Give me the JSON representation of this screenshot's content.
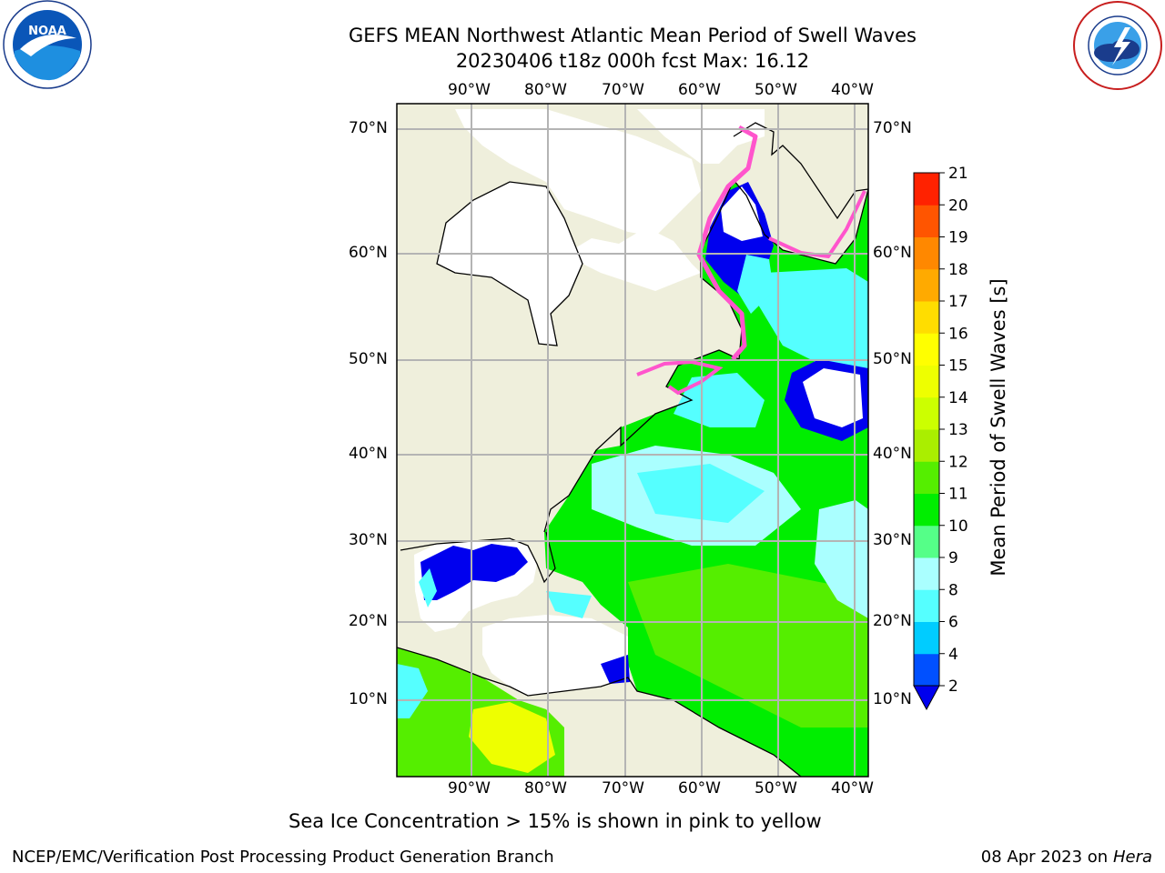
{
  "header": {
    "title_line1": "GEFS MEAN Northwest Atlantic Mean Period of Swell Waves",
    "title_line2": "20230406 t18z 000h fcst   Max: 16.12"
  },
  "logos": {
    "noaa": {
      "text": "NOAA",
      "icon": "noaa-logo-icon",
      "ring_top": "NATIONAL OCEANIC AND ATMOSPHERIC ADMINISTRATION",
      "ring_bottom": "U.S. DEPARTMENT OF COMMERCE"
    },
    "nws": {
      "icon": "nws-logo-icon",
      "ring_text": "NATIONAL WEATHER SERVICE"
    }
  },
  "map": {
    "lon_labels": [
      "90°W",
      "80°W",
      "70°W",
      "60°W",
      "50°W",
      "40°W"
    ],
    "lat_labels": [
      "70°N",
      "60°N",
      "50°N",
      "40°N",
      "30°N",
      "20°N",
      "10°N"
    ],
    "colors": {
      "land": "#efefdc",
      "ocean_missing": "#ffffff",
      "grid": "#b4b4b4",
      "ice": "#ff55cc"
    }
  },
  "colorbar": {
    "label": "Mean Period of Swell Waves [s]",
    "ticks": [
      "2",
      "4",
      "6",
      "8",
      "9",
      "10",
      "11",
      "12",
      "13",
      "14",
      "15",
      "16",
      "17",
      "18",
      "19",
      "20",
      "21"
    ],
    "colors": [
      "#0050ff",
      "#00ccff",
      "#55ffff",
      "#aaffff",
      "#55ff88",
      "#00ee00",
      "#55ee00",
      "#aaee00",
      "#ccff00",
      "#eeff00",
      "#ffff00",
      "#ffdd00",
      "#ffaa00",
      "#ff8800",
      "#ff5500",
      "#ff2200"
    ],
    "under_color": "#0000ee"
  },
  "note": "Sea Ice Concentration > 15% is shown in pink to yellow",
  "footer": {
    "left": "NCEP/EMC/Verification Post Processing Product Generation Branch",
    "date": "08 Apr 2023 on ",
    "machine": "Hera"
  }
}
